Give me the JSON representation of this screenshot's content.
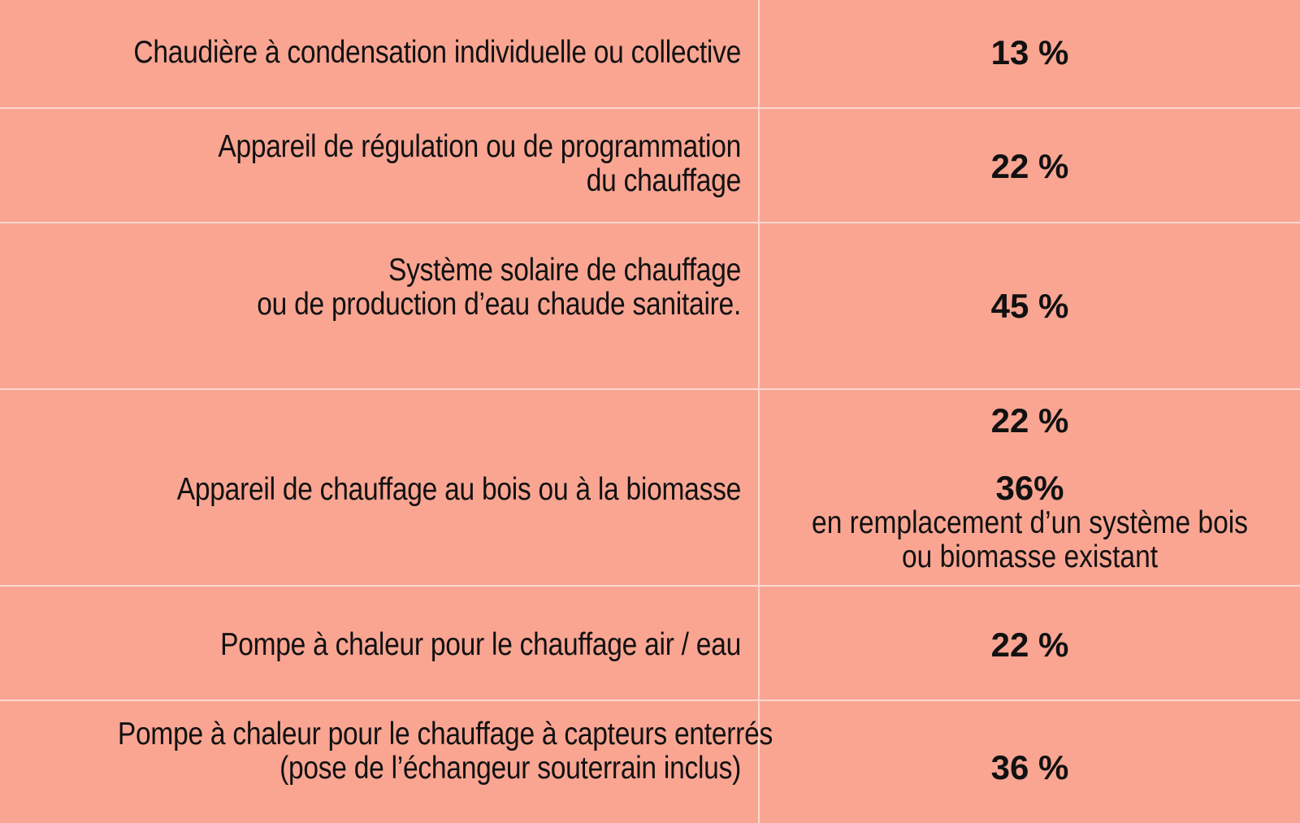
{
  "rows": [
    {
      "label_lines": [
        "Chaudière à condensation individuelle ou collective"
      ],
      "value": "13 %"
    },
    {
      "label_lines": [
        "Appareil de régulation ou de programmation",
        "du chauffage"
      ],
      "value": "22 %"
    },
    {
      "label_lines": [
        "Système solaire de chauffage",
        "ou de production d’eau chaude sanitaire."
      ],
      "value": "45 %"
    },
    {
      "label_lines": [
        "Appareil de chauffage au bois ou à la biomasse"
      ],
      "value": "22 %",
      "value2": "36%",
      "note_lines": [
        "en remplacement d’un système bois",
        "ou biomasse existant"
      ]
    },
    {
      "label_lines": [
        "Pompe à chaleur pour le chauffage air / eau"
      ],
      "value": "22 %"
    },
    {
      "label_lines": [
        "Pompe à chaleur pour le chauffage à capteurs enterrés",
        "(pose de l’échangeur souterrain inclus)"
      ],
      "value": "36 %"
    }
  ],
  "colors": {
    "background": "#f9a592",
    "grid_lines": "#fcd9cf",
    "text": "#111111"
  }
}
